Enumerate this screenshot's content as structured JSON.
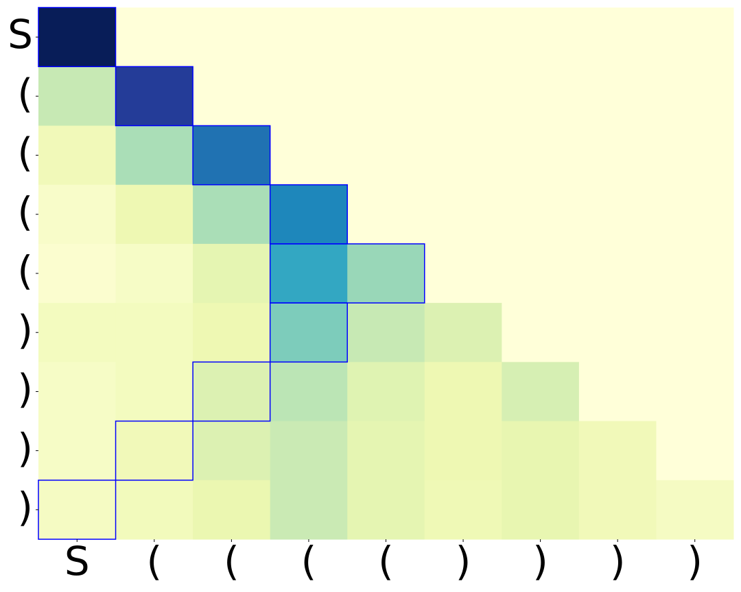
{
  "chart_data": {
    "type": "heatmap",
    "x_categories": [
      "S",
      "(",
      "(",
      "(",
      "(",
      ")",
      ")",
      ")",
      ")"
    ],
    "y_categories": [
      "S",
      "(",
      "(",
      "(",
      "(",
      ")",
      ")",
      ")",
      ")"
    ],
    "values": [
      [
        1.0,
        0,
        0,
        0,
        0,
        0,
        0,
        0,
        0
      ],
      [
        0.25,
        0.85,
        0,
        0,
        0,
        0,
        0,
        0,
        0
      ],
      [
        0.1,
        0.3,
        0.7,
        0,
        0,
        0,
        0,
        0,
        0
      ],
      [
        0.05,
        0.12,
        0.3,
        0.65,
        0,
        0,
        0,
        0,
        0
      ],
      [
        0.03,
        0.06,
        0.15,
        0.55,
        0.33,
        0,
        0,
        0,
        0
      ],
      [
        0.08,
        0.08,
        0.12,
        0.38,
        0.25,
        0.18,
        0,
        0,
        0
      ],
      [
        0.06,
        0.08,
        0.18,
        0.27,
        0.17,
        0.12,
        0.2,
        0,
        0
      ],
      [
        0.06,
        0.1,
        0.18,
        0.24,
        0.15,
        0.12,
        0.14,
        0.1,
        0
      ],
      [
        0.07,
        0.09,
        0.13,
        0.24,
        0.15,
        0.11,
        0.14,
        0.1,
        0.07
      ]
    ],
    "vlim": [
      0,
      1
    ],
    "colormap": "YlGnBu",
    "highlight_color": "#0000ff",
    "highlights": [
      [
        0,
        0,
        0
      ],
      [
        1,
        1,
        1
      ],
      [
        2,
        2,
        2
      ],
      [
        3,
        3,
        3
      ],
      [
        4,
        3,
        4
      ],
      [
        5,
        3,
        3
      ],
      [
        6,
        2,
        2
      ],
      [
        7,
        1,
        1
      ],
      [
        8,
        0,
        0
      ]
    ]
  }
}
